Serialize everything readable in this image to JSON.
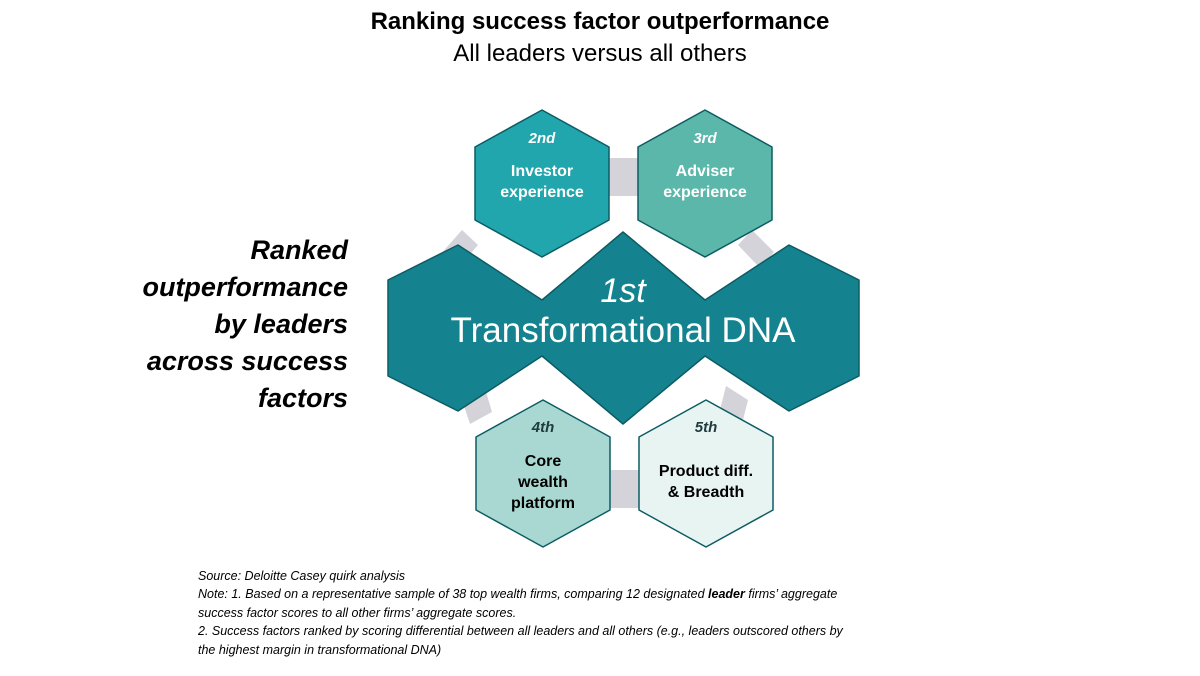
{
  "title": "Ranking success factor outperformance",
  "subtitle": "All leaders versus all others",
  "side_label": [
    "Ranked",
    "outperformance",
    "by leaders",
    "across success",
    "factors"
  ],
  "colors": {
    "dark_teal": "#14838f",
    "teal": "#21a6ad",
    "mid_teal": "#5cb7ab",
    "light_teal": "#a9d8d2",
    "pale_teal": "#e8f4f2",
    "connector": "#d3d3d9",
    "hex_border": "#0c5c64"
  },
  "factors": [
    {
      "rank": "1st",
      "lines": [
        "Transformational DNA"
      ]
    },
    {
      "rank": "2nd",
      "lines": [
        "Investor",
        "experience"
      ]
    },
    {
      "rank": "3rd",
      "lines": [
        "Adviser",
        "experience"
      ]
    },
    {
      "rank": "4th",
      "lines": [
        "Core",
        "wealth",
        "platform"
      ]
    },
    {
      "rank": "5th",
      "lines": [
        "Product diff.",
        "& Breadth"
      ]
    }
  ],
  "notes": {
    "source": "Source: Deloitte Casey quirk analysis",
    "note1_prefix": "Note: 1. Based on a representative sample of 38 top wealth firms, comparing 12 designated ",
    "note1_bold": "leader",
    "note1_suffix": " firms’ aggregate",
    "note1_line2": "success factor scores to all other firms’ aggregate scores.",
    "note2_line1": "2. Success factors ranked by scoring differential between all leaders and all others (e.g., leaders outscored others by",
    "note2_line2": "the highest margin in transformational DNA)"
  }
}
